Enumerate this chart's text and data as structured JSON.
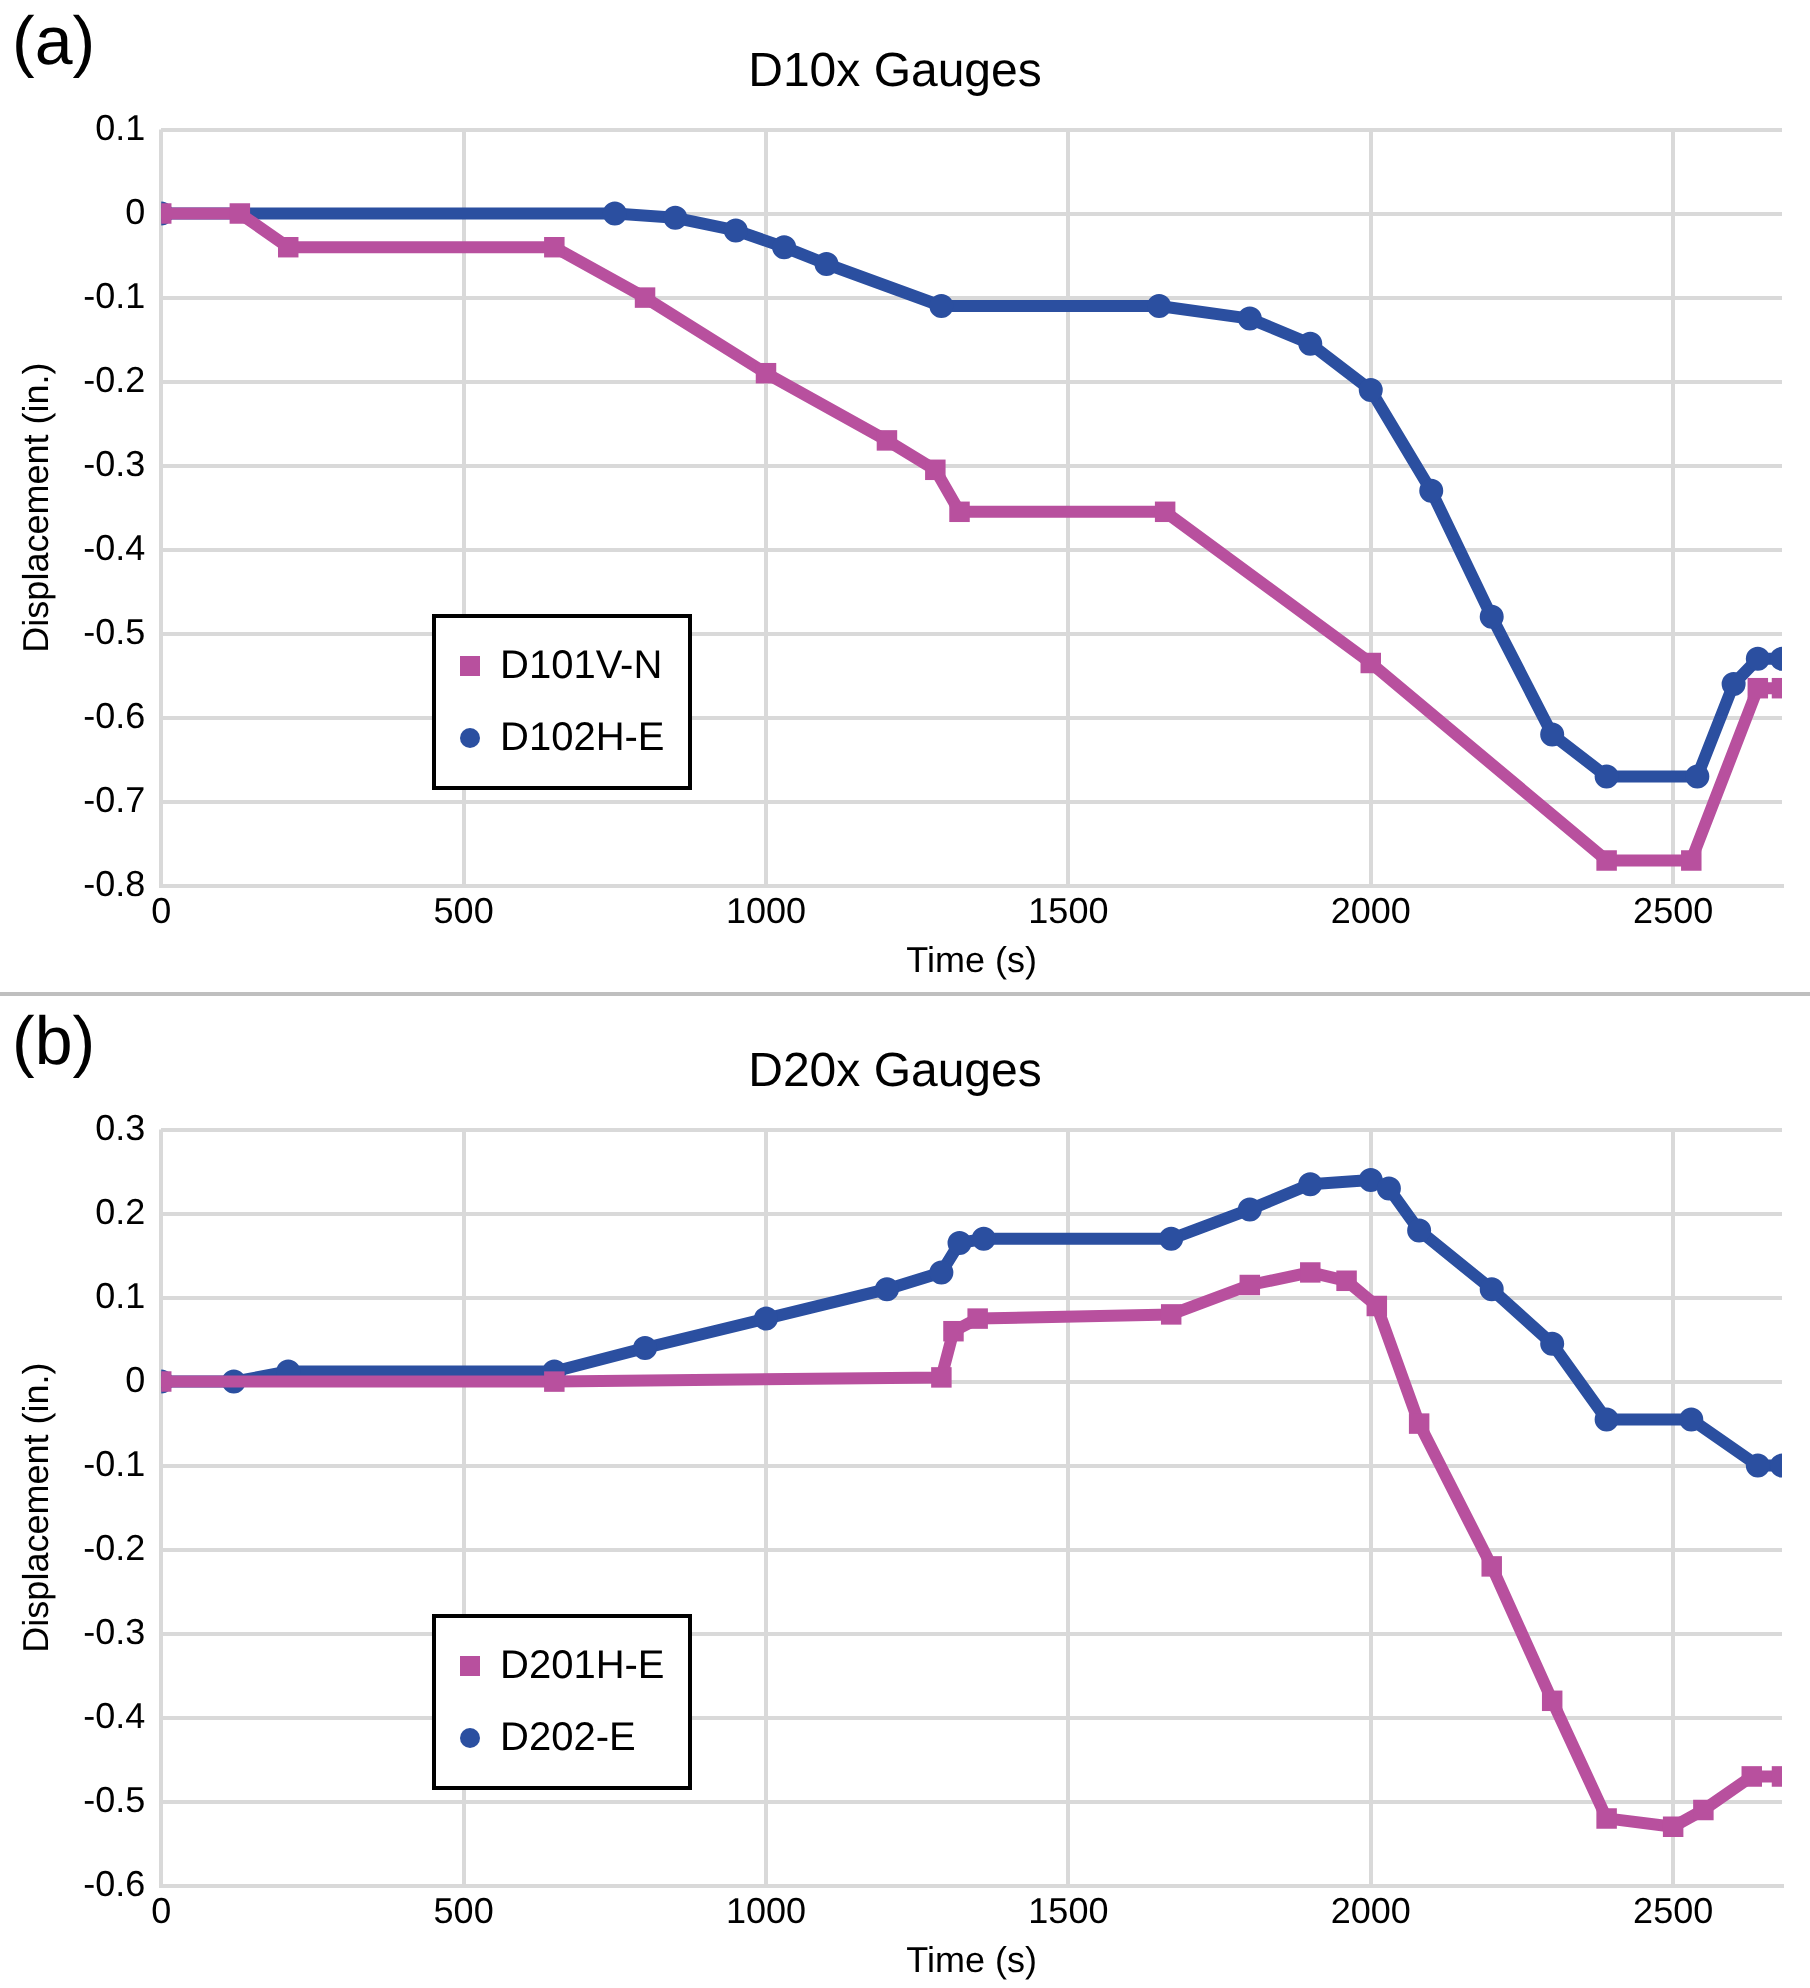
{
  "chart_data": [
    {
      "type": "line",
      "title": "D10x Gauges",
      "xlabel": "Time (s)",
      "ylabel": "Displacement (in.)",
      "annotations": [
        "(a)"
      ],
      "xlim": [
        0,
        2680
      ],
      "xticks": [
        0,
        500,
        1000,
        1500,
        2000,
        2500
      ],
      "ylim": [
        -0.8,
        0.1
      ],
      "yticks": [
        0.1,
        0,
        -0.1,
        -0.2,
        -0.3,
        -0.4,
        -0.5,
        -0.6,
        -0.7,
        -0.8
      ],
      "grid": true,
      "legend": "bottom left",
      "line_style": "solid",
      "series": [
        {
          "name": "D101V-N",
          "color": "#b8509e",
          "marker": "square",
          "x": [
            0,
            130,
            210,
            650,
            800,
            1000,
            1200,
            1280,
            1320,
            1660,
            2000,
            2390,
            2530,
            2640,
            2680
          ],
          "values": [
            0,
            0,
            -0.04,
            -0.04,
            -0.1,
            -0.19,
            -0.27,
            -0.305,
            -0.355,
            -0.355,
            -0.535,
            -0.77,
            -0.77,
            -0.565,
            -0.565
          ]
        },
        {
          "name": "D102H-E",
          "color": "#2b4fa0",
          "marker": "circle",
          "x": [
            0,
            750,
            850,
            950,
            1030,
            1100,
            1290,
            1650,
            1800,
            1900,
            2000,
            2100,
            2200,
            2300,
            2390,
            2540,
            2600,
            2640,
            2680
          ],
          "values": [
            0,
            0,
            -0.005,
            -0.02,
            -0.04,
            -0.06,
            -0.11,
            -0.11,
            -0.125,
            -0.155,
            -0.21,
            -0.33,
            -0.48,
            -0.62,
            -0.67,
            -0.67,
            -0.56,
            -0.53,
            -0.53
          ]
        }
      ]
    },
    {
      "type": "line",
      "title": "D20x Gauges",
      "xlabel": "Time (s)",
      "ylabel": "Displacement (in.)",
      "annotations": [
        "(b)"
      ],
      "xlim": [
        0,
        2680
      ],
      "xticks": [
        0,
        500,
        1000,
        1500,
        2000,
        2500
      ],
      "ylim": [
        -0.6,
        0.3
      ],
      "yticks": [
        0.3,
        0.2,
        0.1,
        0,
        -0.1,
        -0.2,
        -0.3,
        -0.4,
        -0.5,
        -0.6
      ],
      "grid": true,
      "legend": "bottom left",
      "line_style": "solid",
      "series": [
        {
          "name": "D201H-E",
          "color": "#b8509e",
          "marker": "square",
          "x": [
            0,
            650,
            1290,
            1310,
            1350,
            1670,
            1800,
            1900,
            1960,
            2010,
            2080,
            2200,
            2300,
            2390,
            2500,
            2550,
            2630,
            2680
          ],
          "values": [
            0,
            0,
            0.005,
            0.06,
            0.075,
            0.08,
            0.115,
            0.13,
            0.12,
            0.09,
            -0.05,
            -0.22,
            -0.38,
            -0.52,
            -0.53,
            -0.51,
            -0.47,
            -0.47
          ]
        },
        {
          "name": "D202-E",
          "color": "#2b4fa0",
          "marker": "circle",
          "x": [
            0,
            120,
            210,
            650,
            800,
            1000,
            1200,
            1290,
            1320,
            1360,
            1670,
            1800,
            1900,
            2000,
            2030,
            2080,
            2200,
            2300,
            2390,
            2530,
            2640,
            2680
          ],
          "values": [
            0,
            0,
            0.012,
            0.012,
            0.04,
            0.075,
            0.11,
            0.13,
            0.165,
            0.17,
            0.17,
            0.205,
            0.235,
            0.24,
            0.23,
            0.18,
            0.11,
            0.045,
            -0.045,
            -0.045,
            -0.1,
            -0.1
          ]
        }
      ]
    }
  ]
}
